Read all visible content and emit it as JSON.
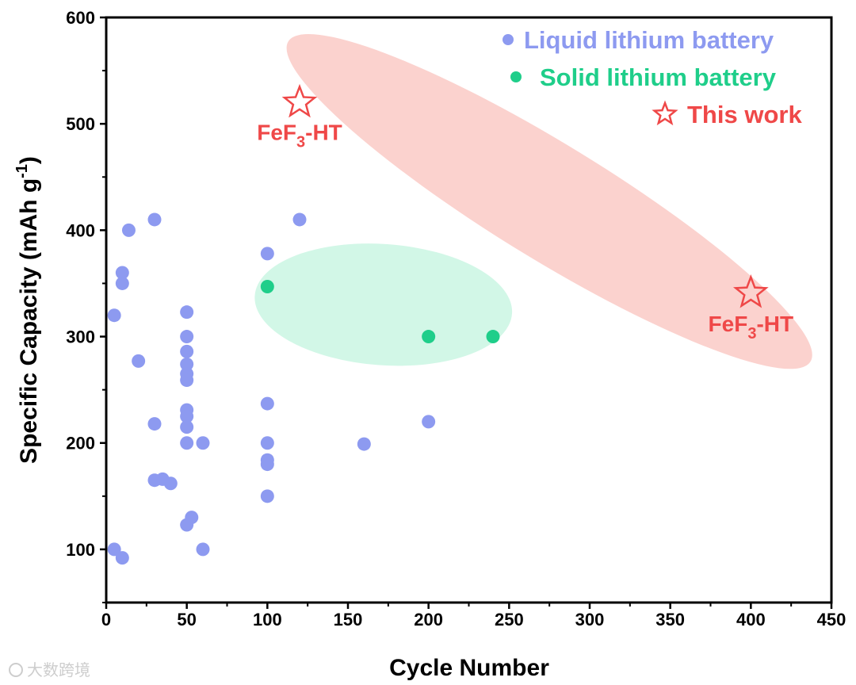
{
  "chart_data": {
    "type": "scatter",
    "xlabel": "Cycle Number",
    "ylabel": "Specific Capacity (mAh g",
    "ylabel_sup": "-1",
    "ylabel_tail": ")",
    "xlim": [
      0,
      450
    ],
    "ylim": [
      50,
      600
    ],
    "x_ticks": [
      0,
      50,
      100,
      150,
      200,
      250,
      300,
      350,
      400,
      450
    ],
    "y_ticks": [
      100,
      200,
      300,
      400,
      500,
      600
    ],
    "grid": false,
    "legend_position": "top-right",
    "colors": {
      "liquid": "#8d9af0",
      "solid": "#1fce8a",
      "this_work": "#ef4848",
      "ellipse_red": "#f9b6b0",
      "ellipse_green": "#b6f2d9"
    },
    "series": [
      {
        "name": "Liquid lithium battery",
        "marker": "circle",
        "points": [
          [
            5,
            320
          ],
          [
            5,
            100
          ],
          [
            10,
            360
          ],
          [
            10,
            350
          ],
          [
            10,
            92
          ],
          [
            14,
            400
          ],
          [
            20,
            277
          ],
          [
            30,
            410
          ],
          [
            30,
            218
          ],
          [
            30,
            165
          ],
          [
            35,
            166
          ],
          [
            40,
            162
          ],
          [
            50,
            323
          ],
          [
            50,
            300
          ],
          [
            50,
            286
          ],
          [
            50,
            274
          ],
          [
            50,
            265
          ],
          [
            50,
            259
          ],
          [
            50,
            231
          ],
          [
            50,
            225
          ],
          [
            50,
            215
          ],
          [
            50,
            200
          ],
          [
            50,
            123
          ],
          [
            53,
            130
          ],
          [
            60,
            200
          ],
          [
            60,
            100
          ],
          [
            100,
            378
          ],
          [
            100,
            237
          ],
          [
            100,
            200
          ],
          [
            100,
            184
          ],
          [
            100,
            180
          ],
          [
            100,
            150
          ],
          [
            120,
            410
          ],
          [
            160,
            199
          ],
          [
            200,
            220
          ]
        ]
      },
      {
        "name": "Solid lithium battery",
        "marker": "circle",
        "points": [
          [
            100,
            347
          ],
          [
            200,
            300
          ],
          [
            240,
            300
          ]
        ]
      },
      {
        "name": "This work",
        "marker": "star",
        "points": [
          [
            120,
            520
          ],
          [
            400,
            341
          ]
        ]
      }
    ],
    "annotations": [
      {
        "text_main": "FeF",
        "text_sub": "3",
        "text_tail": "-HT",
        "x": 120,
        "y": 485
      },
      {
        "text_main": "FeF",
        "text_sub": "3",
        "text_tail": "-HT",
        "x": 400,
        "y": 305
      }
    ],
    "highlight_regions": [
      {
        "name": "this-work-region",
        "cx": 275,
        "cy": 427,
        "rx": 190,
        "ry": 38,
        "angle_deg": 31.5,
        "color_key": "ellipse_red"
      },
      {
        "name": "solid-region",
        "cx": 172,
        "cy": 330,
        "rx": 80,
        "ry": 40,
        "angle_deg": 4,
        "color_key": "ellipse_green"
      }
    ]
  },
  "watermark": "大数跨境"
}
